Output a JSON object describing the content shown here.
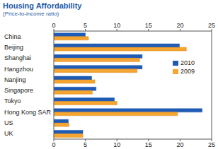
{
  "chart_data": {
    "type": "bar",
    "title": "Housing Affordability",
    "subtitle": "(Price-to-income ratio)",
    "orientation": "horizontal",
    "categories": [
      "China",
      "Beijing",
      "Shanghai",
      "Hangzhou",
      "Nanjing",
      "Singapore",
      "Tokyo",
      "Hong Kong SAR",
      "US",
      "UK"
    ],
    "series": [
      {
        "name": "2010",
        "color": "#1f5bb5",
        "values": [
          5.0,
          19.9,
          14.0,
          14.0,
          6.0,
          6.7,
          9.6,
          23.5,
          2.3,
          4.6
        ]
      },
      {
        "name": "2009",
        "color": "#f7a531",
        "values": [
          5.5,
          21.0,
          13.6,
          13.2,
          6.5,
          6.1,
          10.0,
          19.6,
          2.4,
          4.6
        ]
      }
    ],
    "xlim": [
      0,
      25
    ],
    "xticks": [
      0,
      5,
      10,
      15,
      20,
      25
    ],
    "grid": false,
    "legend": "right"
  }
}
